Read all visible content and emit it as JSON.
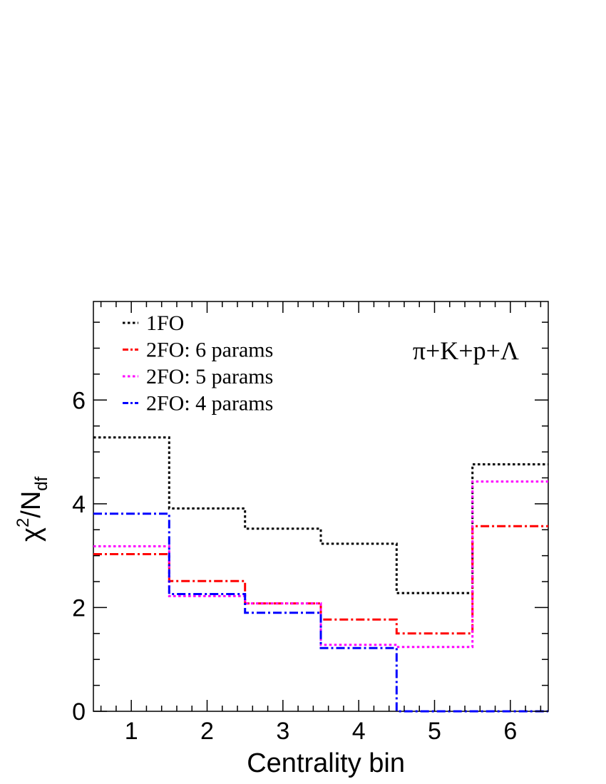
{
  "chart_data": {
    "type": "line",
    "step": true,
    "xlabel": "Centrality bin",
    "ylabel": "χ²/N_df",
    "ylabel_parts": {
      "base": "χ",
      "sup": "2",
      "mid": "/N",
      "sub": "df"
    },
    "xlim": [
      0.5,
      6.5
    ],
    "ylim": [
      0,
      7.9
    ],
    "xticks": [
      1,
      2,
      3,
      4,
      5,
      6
    ],
    "yticks": [
      0,
      2,
      4,
      6
    ],
    "grid": false,
    "legend_position": "top-left",
    "annotation": "π+K+p+Λ",
    "x": [
      1,
      2,
      3,
      4,
      5,
      6
    ],
    "series": [
      {
        "name": "1FO",
        "color": "#000000",
        "dash": "dotted",
        "values": [
          5.28,
          3.91,
          3.52,
          3.23,
          2.28,
          4.76
        ]
      },
      {
        "name": "2FO: 6 params",
        "color": "#ff0000",
        "dash": "dash-dot",
        "values": [
          3.03,
          2.51,
          2.08,
          1.77,
          1.5,
          3.57
        ]
      },
      {
        "name": "2FO: 5 params",
        "color": "#ff00ff",
        "dash": "dotted",
        "values": [
          3.18,
          2.22,
          2.08,
          1.28,
          1.24,
          4.43
        ]
      },
      {
        "name": "2FO: 4 params",
        "color": "#0000ff",
        "dash": "dash-dot",
        "values": [
          3.81,
          2.26,
          1.9,
          1.22,
          0.0,
          0.0
        ]
      }
    ]
  }
}
